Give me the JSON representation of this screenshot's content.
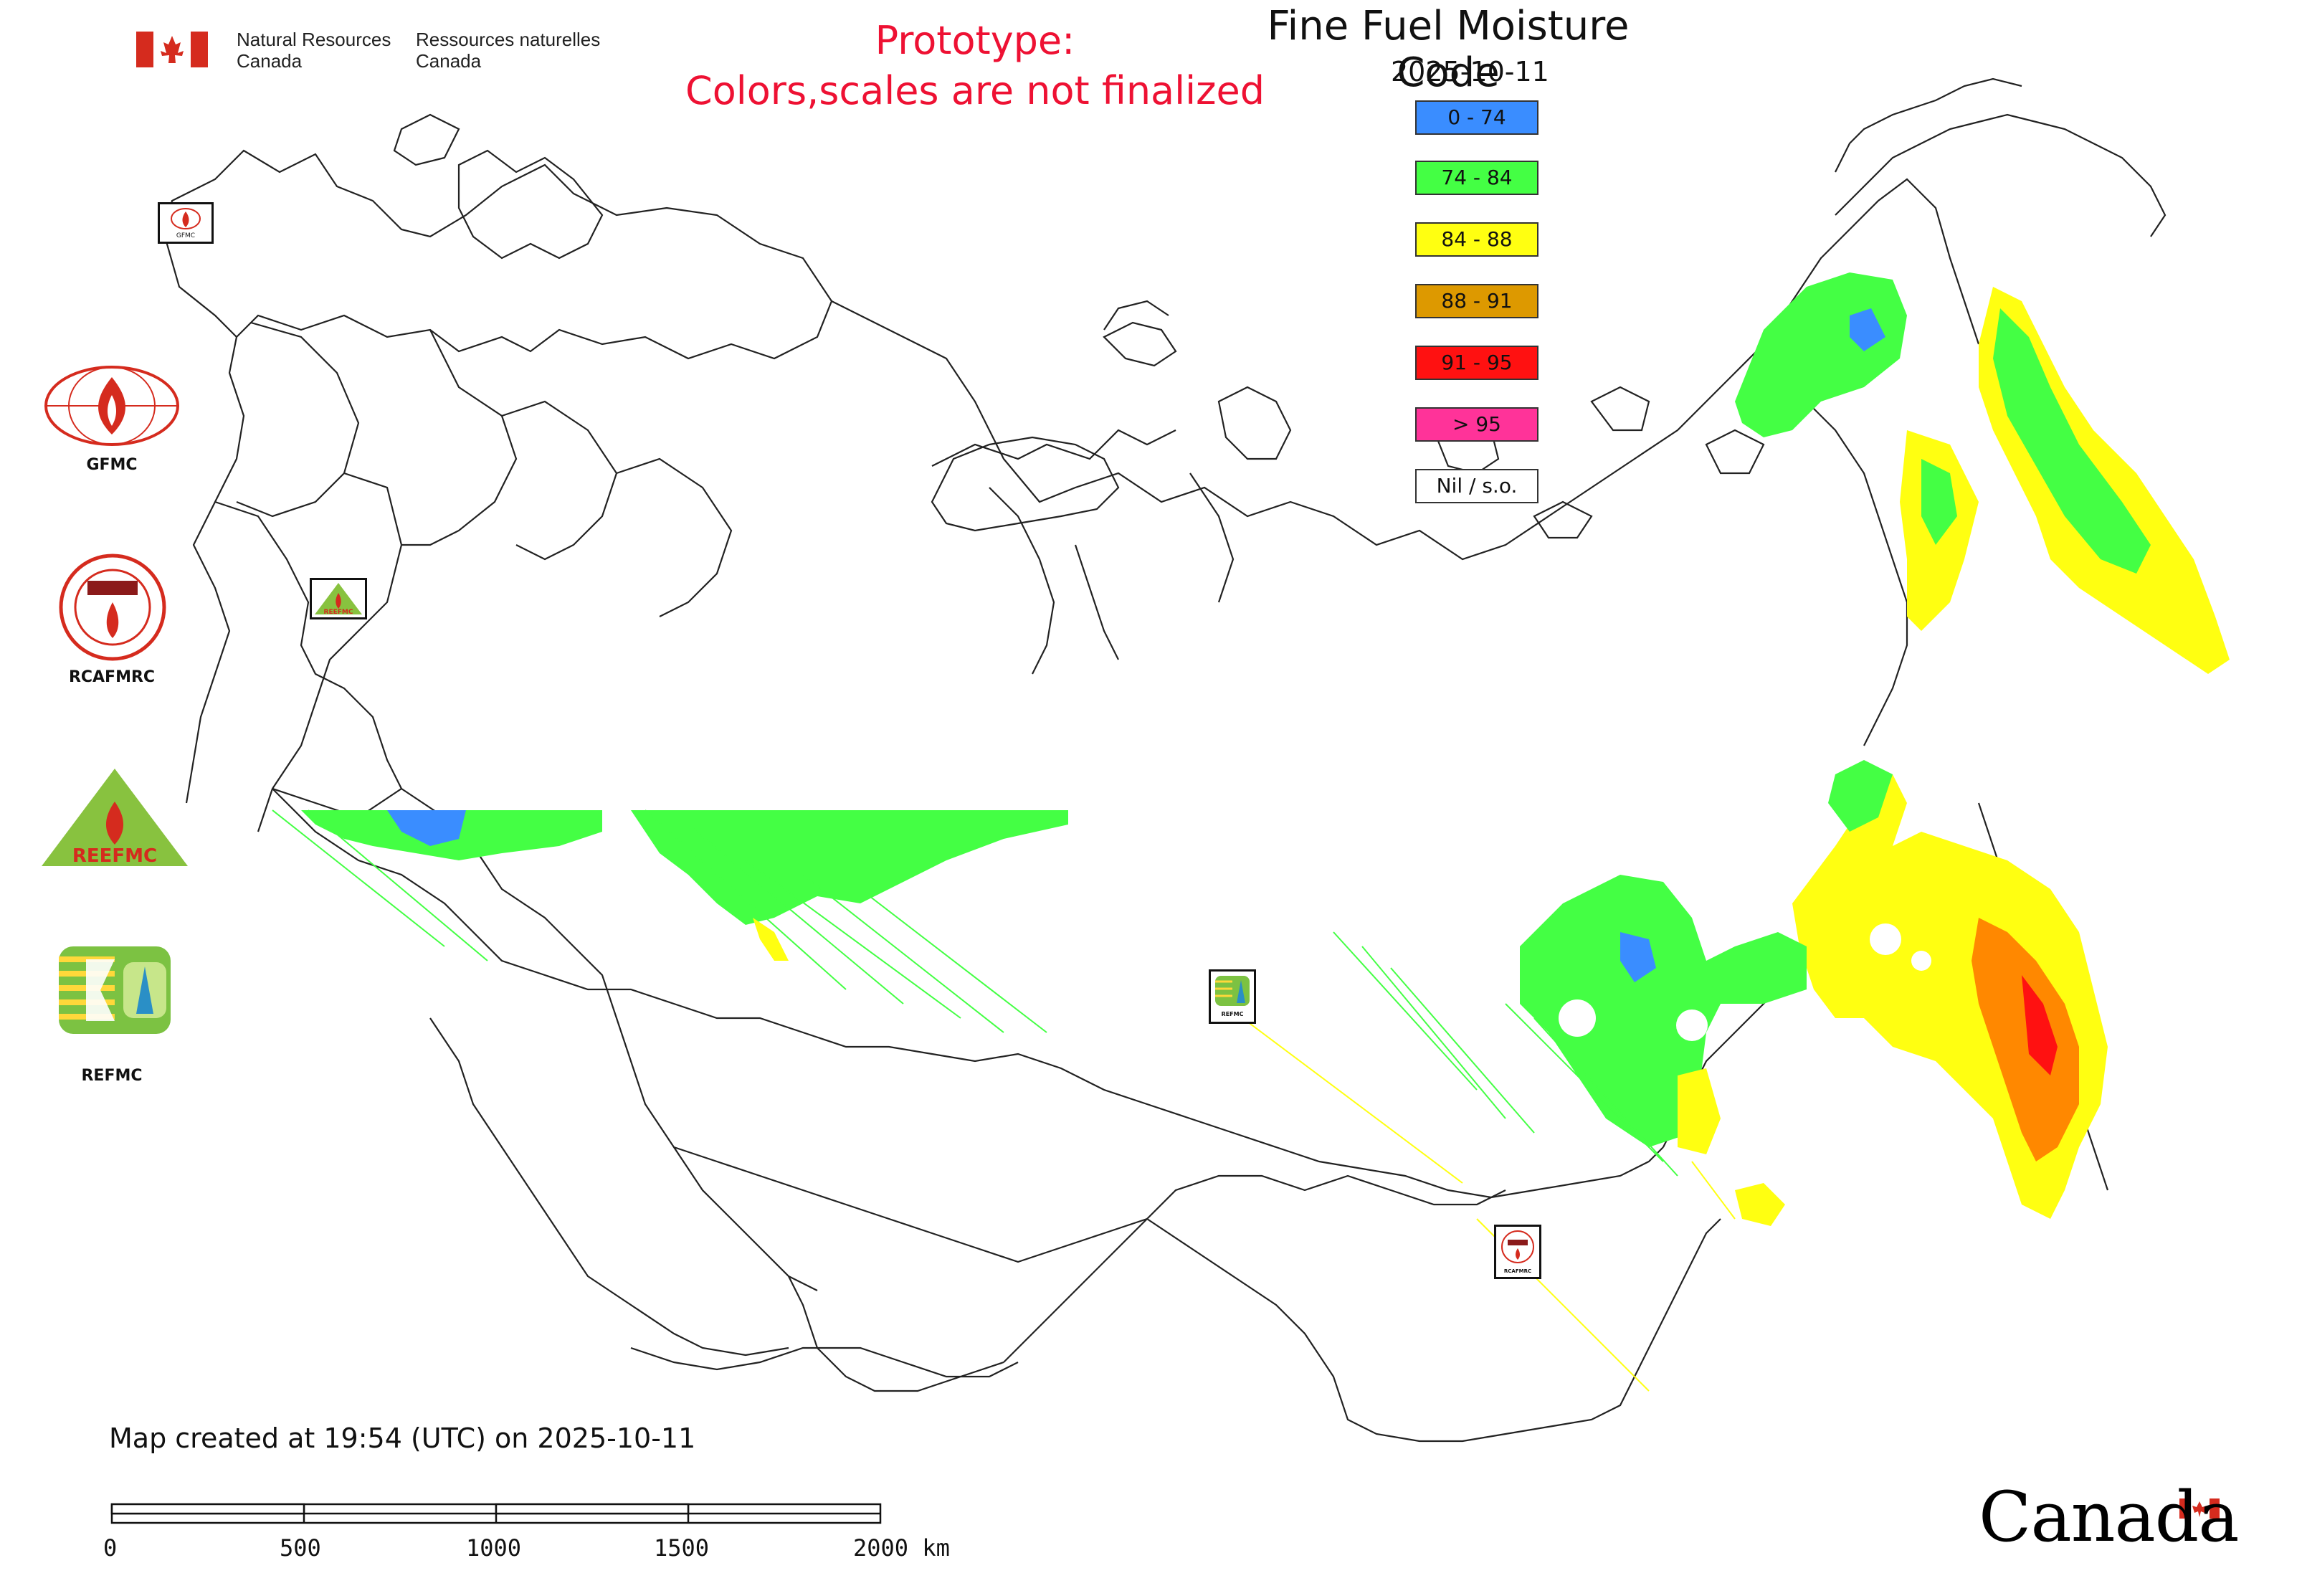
{
  "header": {
    "title": "Fine Fuel Moisture Code",
    "date": "2025-10-11",
    "prototype_line1": "Prototype:",
    "prototype_line2": "Colors,scales are not finalized"
  },
  "agency": {
    "en_line1": "Natural Resources",
    "en_line2": "Canada",
    "fr_line1": "Ressources naturelles",
    "fr_line2": "Canada",
    "flag_colors": [
      "#d52b1e",
      "#ffffff"
    ]
  },
  "legend": [
    {
      "label": "0 - 74",
      "color": "#3a8dff"
    },
    {
      "label": "74 - 84",
      "color": "#44ff44"
    },
    {
      "label": "84 - 88",
      "color": "#ffff11"
    },
    {
      "label": "88 - 91",
      "color": "#dd9900"
    },
    {
      "label": "91 - 95",
      "color": "#ff1111"
    },
    {
      "label": "> 95",
      "color": "#ff3399"
    },
    {
      "label": "Nil / s.o.",
      "color": "#ffffff"
    }
  ],
  "organizations": [
    {
      "name": "GFMC",
      "icon": "gfmc-logo-icon"
    },
    {
      "name": "RCAFMRC",
      "icon": "rcafmrc-logo-icon"
    },
    {
      "name": "REEFMC",
      "icon": "reefmc-logo-icon"
    },
    {
      "name": "REFMC",
      "icon": "refmc-logo-icon"
    }
  ],
  "map_markers": [
    {
      "name": "GFMC",
      "icon": "gfmc-marker-icon"
    },
    {
      "name": "REEFMC",
      "icon": "reefmc-marker-icon"
    },
    {
      "name": "REFMC",
      "icon": "refmc-marker-icon"
    },
    {
      "name": "RCAFMRC",
      "icon": "rcafmrc-marker-icon"
    }
  ],
  "footer": {
    "created_note": "Map created at 19:54 (UTC) on 2025-10-11",
    "wordmark": "Canada"
  },
  "scale_bar": {
    "ticks": [
      "0",
      "500",
      "1000",
      "1500",
      "2000 km"
    ]
  }
}
